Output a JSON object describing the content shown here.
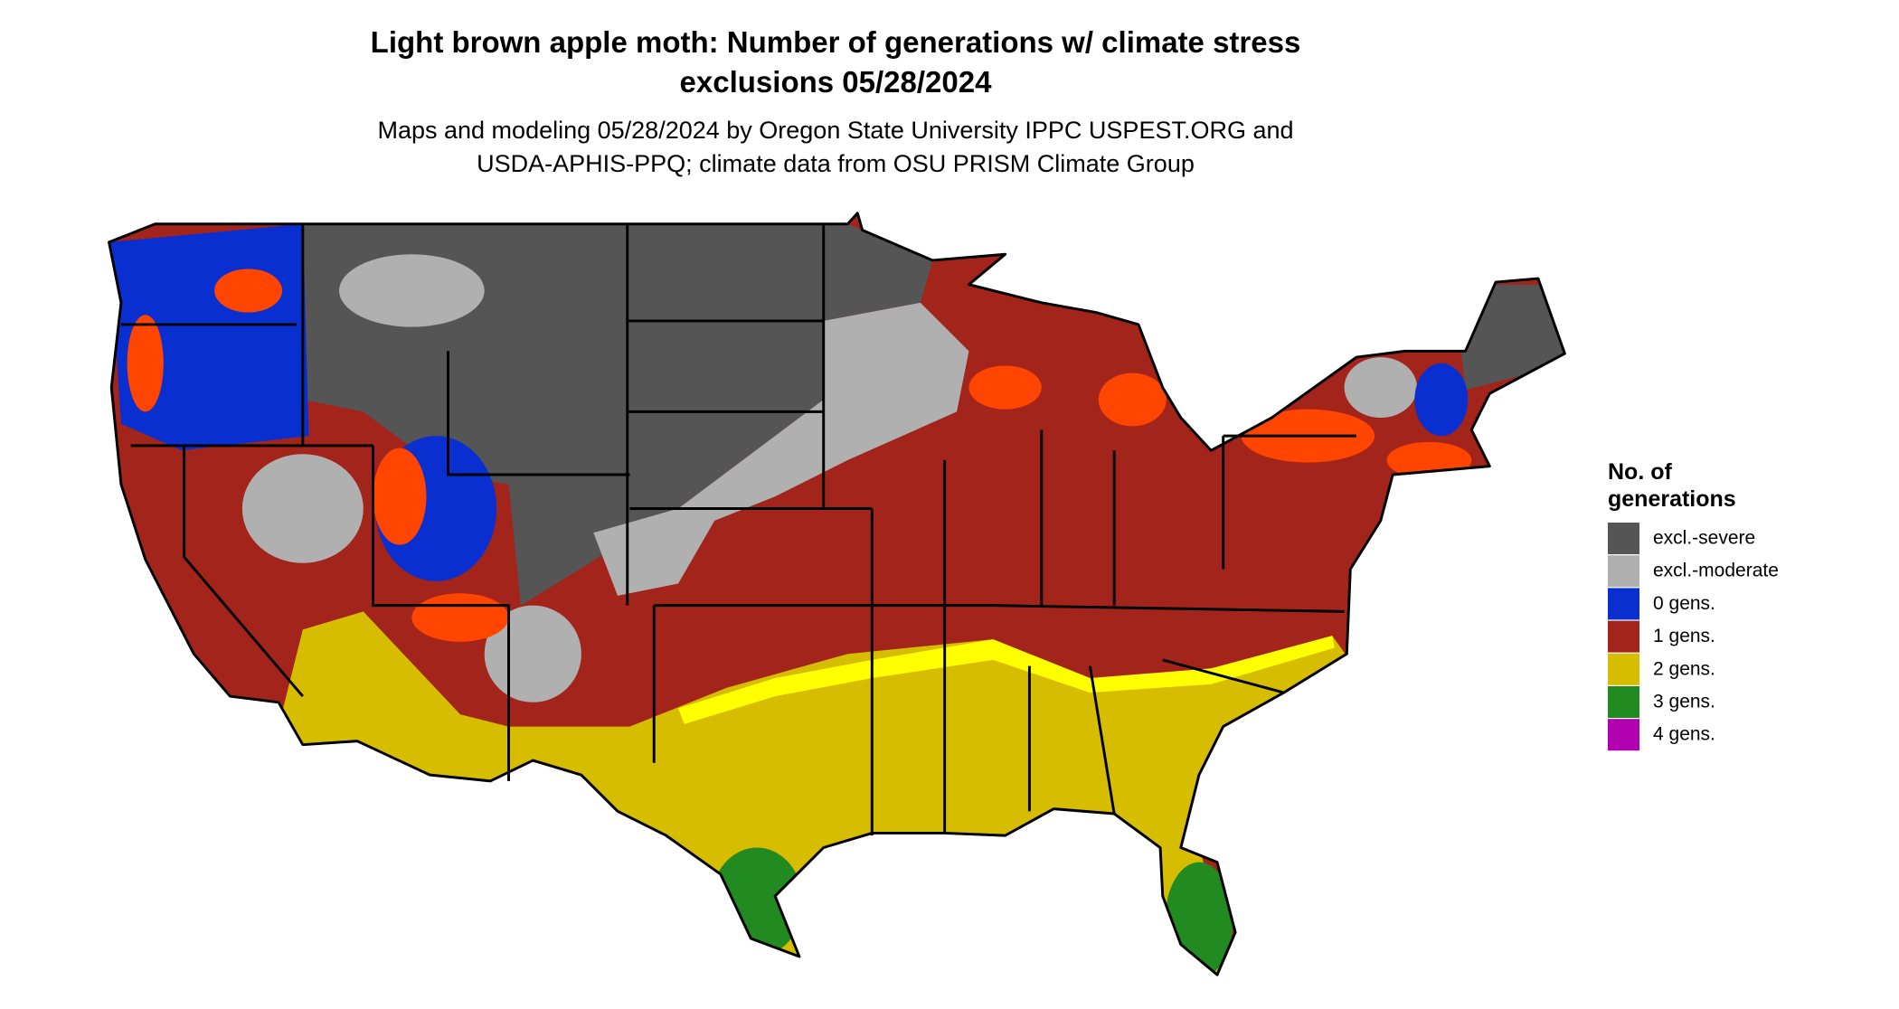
{
  "header": {
    "title": [
      "Light brown apple moth: Number of generations w/ climate stress",
      "exclusions 05/28/2024"
    ],
    "subtitle": [
      "Maps and modeling 05/28/2024 by Oregon State University IPPC USPEST.ORG and",
      "USDA-APHIS-PPQ; climate data from OSU PRISM Climate Group"
    ]
  },
  "legend": {
    "title": [
      "No. of",
      "generations"
    ],
    "items": [
      {
        "label": "excl.-severe",
        "color": "#555555"
      },
      {
        "label": "excl.-moderate",
        "color": "#b0b0b0"
      },
      {
        "label": "0 gens.",
        "color": "#0a2fd0"
      },
      {
        "label": "1 gens.",
        "color": "#a3241a"
      },
      {
        "label": "2 gens.",
        "color": "#d6bd00"
      },
      {
        "label": "3 gens.",
        "color": "#218a21"
      },
      {
        "label": "4 gens.",
        "color": "#b000b0"
      }
    ]
  }
}
